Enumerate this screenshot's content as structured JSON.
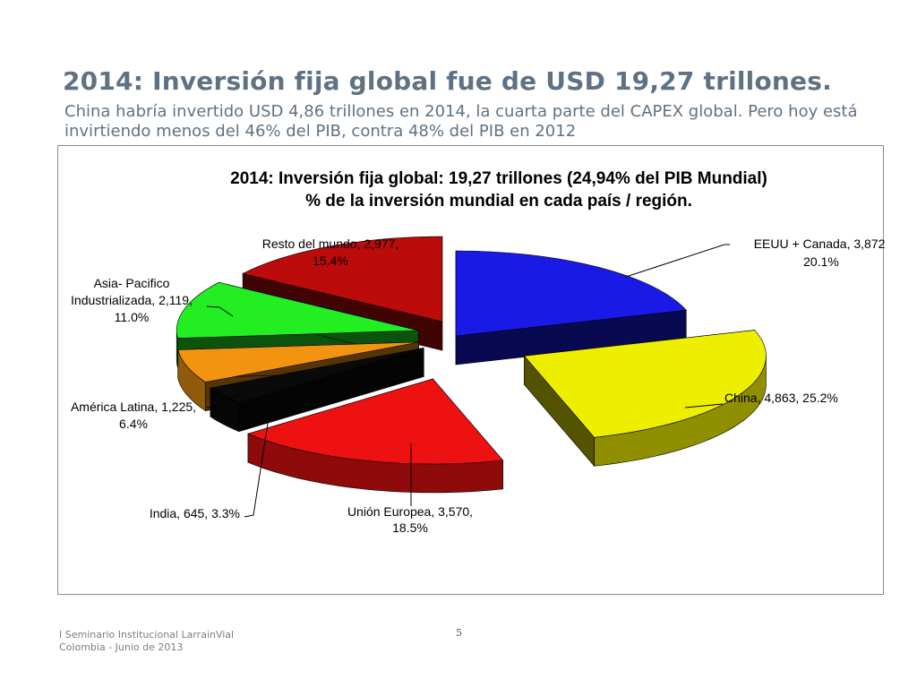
{
  "slide": {
    "title": "2014: Inversión fija global fue de USD 19,27 trillones.",
    "subtitle": "China habría invertido USD 4,86 trillones en 2014, la cuarta parte del CAPEX global. Pero hoy está invirtiendo menos del 46% del PIB, contra 48% del PIB en 2012"
  },
  "chart_data": {
    "type": "pie",
    "style": "3d-exploded",
    "title_line1": "2014: Inversión fija global: 19,27 trillones (24,94% del PIB Mundial)",
    "title_line2": "% de la inversión mundial en cada país / región.",
    "slices": [
      {
        "name": "EEUU + Canada",
        "value": 3872,
        "percent": 20.1,
        "value_label": "3,872",
        "percent_label": "20.1%",
        "color": "#1a1ae6"
      },
      {
        "name": "China",
        "value": 4863,
        "percent": 25.2,
        "value_label": "4,863",
        "percent_label": "25.2%",
        "color": "#eeee00"
      },
      {
        "name": "Unión Europea",
        "value": 3570,
        "percent": 18.5,
        "value_label": "3,570",
        "percent_label": "18.5%",
        "color": "#ee1111"
      },
      {
        "name": "India",
        "value": 645,
        "percent": 3.3,
        "value_label": "645",
        "percent_label": "3.3%",
        "color": "#0a0a0a"
      },
      {
        "name": "América Latina",
        "value": 1225,
        "percent": 6.4,
        "value_label": "1,225",
        "percent_label": "6.4%",
        "color": "#f29410"
      },
      {
        "name": "Asia- Pacifico Industrializada",
        "value": 2119,
        "percent": 11.0,
        "value_label": "2,119",
        "percent_label": "11.0%",
        "color": "#22ee22"
      },
      {
        "name": "Resto del mundo",
        "value": 2977,
        "percent": 15.4,
        "value_label": "2,977",
        "percent_label": "15.4%",
        "color": "#bb0b0b"
      }
    ]
  },
  "labels": {
    "eeuu_1": "EEUU + Canada, 3,872,",
    "eeuu_2": "20.1%",
    "china_1": "China, 4,863, 25.2%",
    "ue_1": "Unión Europea, 3,570,",
    "ue_2": "18.5%",
    "india_1": "India, 645, 3.3%",
    "latam_1": "América Latina, 1,225,",
    "latam_2": "6.4%",
    "asia_1": "Asia- Pacifico",
    "asia_2": "Industrializada, 2,119,",
    "asia_3": "11.0%",
    "resto_1": "Resto del mundo, 2,977,",
    "resto_2": "15.4%"
  },
  "footer": {
    "org": "I Seminario Institucional LarrainVial",
    "date": "Colombia - Junio de 2013",
    "page": "5"
  }
}
